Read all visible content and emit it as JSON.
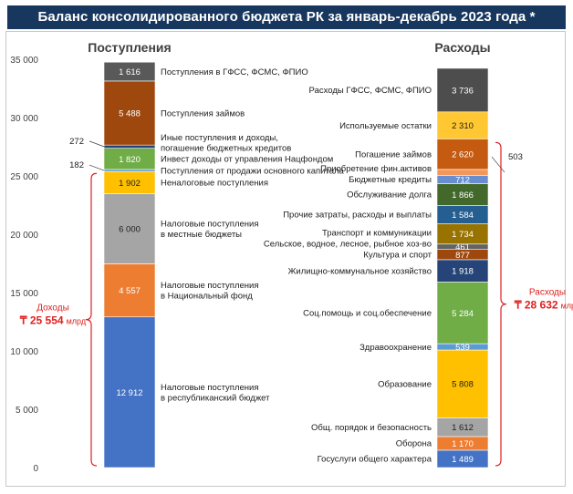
{
  "chart_data": {
    "type": "bar",
    "title": "Баланс консолидированного бюджета РК за январь-декабрь 2023 года *",
    "ylim": [
      0,
      35000
    ],
    "yticks": [
      "0",
      "5 000",
      "10 000",
      "15 000",
      "20 000",
      "25 000",
      "30 000",
      "35 000"
    ],
    "ytick_values": [
      0,
      5000,
      10000,
      15000,
      20000,
      25000,
      30000,
      35000
    ],
    "grid": false,
    "series": [
      {
        "name": "Поступления",
        "total_label": "Доходы",
        "total_value": "₸ 25 554",
        "total_unit": "млрд",
        "segments": [
          {
            "label": "Налоговые поступления\nв республиканский бюджет",
            "value": 12912,
            "value_label": "12 912",
            "color": "#4472c4"
          },
          {
            "label": "Налоговые поступления\nв Национальный фонд",
            "value": 4557,
            "value_label": "4 557",
            "color": "#ed7d31"
          },
          {
            "label": "Налоговые поступления\nв местные бюджеты",
            "value": 6000,
            "value_label": "6 000",
            "color": "#a5a5a5"
          },
          {
            "label": "Неналоговые поступления",
            "value": 1902,
            "value_label": "1 902",
            "color": "#ffc000"
          },
          {
            "label": "Поступления от продажи основного капитала",
            "value": 182,
            "value_label": "182",
            "color": "#5b9bd5",
            "outside": true
          },
          {
            "label": "Инвест доходы от управления Нацфондом",
            "value": 1820,
            "value_label": "1 820",
            "color": "#70ad47"
          },
          {
            "label": "Иные поступления и доходы,\nпогашение бюджетных кредитов",
            "value": 272,
            "value_label": "272",
            "color": "#264478",
            "outside": true
          },
          {
            "label": "Поступления займов",
            "value": 5488,
            "value_label": "5 488",
            "color": "#9e480e"
          },
          {
            "label": "Поступления в ГФСС, ФСМС, ФПИО",
            "value": 1616,
            "value_label": "1 616",
            "color": "#595959"
          }
        ]
      },
      {
        "name": "Расходы",
        "total_label": "Расходы",
        "total_value": "₸ 28 632",
        "total_unit": "млрд",
        "segments": [
          {
            "label": "Госуслуги общего характера",
            "value": 1489,
            "value_label": "1 489",
            "color": "#4472c4"
          },
          {
            "label": "Оборона",
            "value": 1170,
            "value_label": "1 170",
            "color": "#ed7d31"
          },
          {
            "label": "Общ. порядок и безопасность",
            "value": 1612,
            "value_label": "1 612",
            "color": "#a5a5a5"
          },
          {
            "label": "Образование",
            "value": 5808,
            "value_label": "5 808",
            "color": "#ffc000"
          },
          {
            "label": "Здравоохранение",
            "value": 539,
            "value_label": "539",
            "color": "#5b9bd5"
          },
          {
            "label": "Соц.помощь и соц.обеспечение",
            "value": 5284,
            "value_label": "5 284",
            "color": "#70ad47"
          },
          {
            "label": "Жилищно-коммунальное хозяйство",
            "value": 1918,
            "value_label": "1 918",
            "color": "#264478"
          },
          {
            "label": "Культура и спорт",
            "value": 877,
            "value_label": "877",
            "color": "#9e480e"
          },
          {
            "label": "Сельское, водное, лесное, рыбное хоз-во",
            "value": 461,
            "value_label": "461",
            "color": "#636363"
          },
          {
            "label": "Транспорт и коммуникации",
            "value": 1734,
            "value_label": "1 734",
            "color": "#997300"
          },
          {
            "label": "Прочие затраты, расходы и выплаты",
            "value": 1584,
            "value_label": "1 584",
            "color": "#255e91"
          },
          {
            "label": "Обслуживание долга",
            "value": 1866,
            "value_label": "1 866",
            "color": "#43682b"
          },
          {
            "label": "Бюджетные кредиты",
            "value": 712,
            "value_label": "712",
            "color": "#698ed0"
          },
          {
            "label": "Приобретение фин.активов",
            "value": 503,
            "value_label": "503",
            "color": "#f1975a",
            "outside": true
          },
          {
            "label": "Погашение займов",
            "value": 2620,
            "value_label": "2 620",
            "color": "#c55a11"
          },
          {
            "label": "Используемые остатки",
            "value": 2310,
            "value_label": "2 310",
            "color": "#ffc832"
          },
          {
            "label": "Расходы ГФСС, ФСМС, ФПИО",
            "value": 3736,
            "value_label": "3 736",
            "color": "#4d4d4d"
          }
        ]
      }
    ]
  },
  "colors": {
    "title_bg": "#17375e",
    "accent": "#e02020",
    "axis": "#7f7f7f"
  }
}
